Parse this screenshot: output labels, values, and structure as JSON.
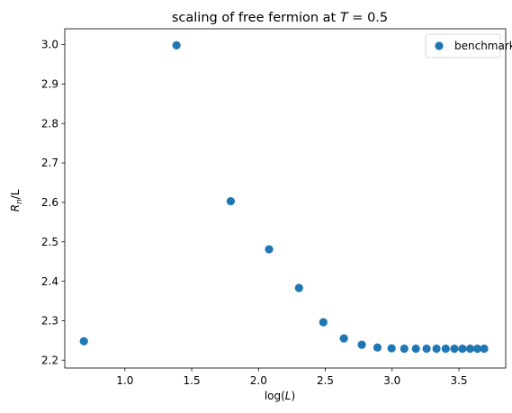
{
  "chart_data": {
    "type": "scatter",
    "title_prefix": "scaling of free fermion at ",
    "title_var": "T",
    "title_suffix": " = 0.5",
    "xlabel_prefix": "log(",
    "xlabel_var": "L",
    "xlabel_suffix": ")",
    "ylabel_var": "R",
    "ylabel_sub": "n",
    "ylabel_suffix": "/L",
    "xlim": [
      0.55,
      3.85
    ],
    "ylim": [
      2.18,
      3.04
    ],
    "xticks": [
      "1.0",
      "1.5",
      "2.0",
      "2.5",
      "3.0",
      "3.5"
    ],
    "yticks": [
      "2.2",
      "2.3",
      "2.4",
      "2.5",
      "2.6",
      "2.7",
      "2.8",
      "2.9",
      "3.0"
    ],
    "grid": false,
    "legend_position": "top-right",
    "series": [
      {
        "name": "benchmark",
        "color": "#1f77b4",
        "points": [
          [
            0.693,
            2.248
          ],
          [
            1.386,
            2.998
          ],
          [
            1.792,
            2.603
          ],
          [
            2.079,
            2.481
          ],
          [
            2.303,
            2.383
          ],
          [
            2.485,
            2.296
          ],
          [
            2.639,
            2.255
          ],
          [
            2.773,
            2.239
          ],
          [
            2.89,
            2.232
          ],
          [
            2.996,
            2.23
          ],
          [
            3.091,
            2.229
          ],
          [
            3.178,
            2.229
          ],
          [
            3.258,
            2.229
          ],
          [
            3.332,
            2.229
          ],
          [
            3.401,
            2.229
          ],
          [
            3.466,
            2.229
          ],
          [
            3.526,
            2.229
          ],
          [
            3.584,
            2.229
          ],
          [
            3.638,
            2.229
          ],
          [
            3.689,
            2.229
          ]
        ]
      }
    ]
  }
}
